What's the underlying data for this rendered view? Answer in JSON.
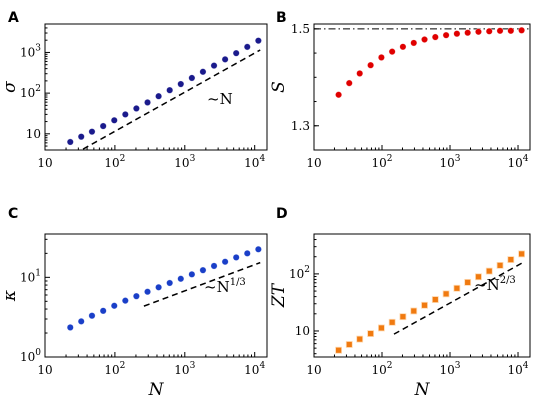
{
  "chart_data": [
    {
      "panel": "A",
      "type": "scatter",
      "xscale": "log",
      "yscale": "log",
      "xlim": [
        10,
        15000
      ],
      "ylim": [
        4,
        5000
      ],
      "xticks": [
        {
          "value": 10,
          "base": "10",
          "exp": ""
        },
        {
          "value": 100,
          "base": "10",
          "exp": "2"
        },
        {
          "value": 1000,
          "base": "10",
          "exp": "3"
        },
        {
          "value": 10000,
          "base": "10",
          "exp": "4"
        }
      ],
      "yticks": [
        {
          "value": 10,
          "base": "10",
          "exp": ""
        },
        {
          "value": 100,
          "base": "10",
          "exp": "2"
        },
        {
          "value": 1000,
          "base": "10",
          "exp": "3"
        }
      ],
      "xlabel": "",
      "ylabel": "σ",
      "marker_color": "#1a1a8c",
      "marker": "circle",
      "series": [
        {
          "x": [
            23,
            33,
            47,
            68,
            98,
            141,
            203,
            293,
            422,
            608,
            876,
            1262,
            1818,
            2620,
            3775,
            5438,
            7835,
            11288
          ],
          "y": [
            6.3,
            8.5,
            11.3,
            15.5,
            21.5,
            30,
            42,
            59,
            84,
            118,
            167,
            236,
            335,
            475,
            675,
            960,
            1370,
            1950
          ]
        }
      ],
      "guide": {
        "x": [
          35,
          12000
        ],
        "y": [
          4.2,
          1150
        ],
        "label": "~N",
        "sup": ""
      }
    },
    {
      "panel": "B",
      "type": "scatter",
      "xscale": "log",
      "yscale": "linear",
      "xlim": [
        10,
        15000
      ],
      "ylim": [
        1.25,
        1.51
      ],
      "xticks": [
        {
          "value": 10,
          "base": "10",
          "exp": ""
        },
        {
          "value": 100,
          "base": "10",
          "exp": "2"
        },
        {
          "value": 1000,
          "base": "10",
          "exp": "3"
        },
        {
          "value": 10000,
          "base": "10",
          "exp": "4"
        }
      ],
      "yticks": [
        {
          "value": 1.3,
          "base": "1.3",
          "exp": ""
        },
        {
          "value": 1.5,
          "base": "1.5",
          "exp": ""
        }
      ],
      "xlabel": "",
      "ylabel": "S",
      "marker_color": "#e00000",
      "marker": "circle",
      "series": [
        {
          "x": [
            23,
            33,
            47,
            68,
            98,
            141,
            203,
            293,
            422,
            608,
            876,
            1262,
            1818,
            2620,
            3775,
            5438,
            7835,
            11288
          ],
          "y": [
            1.364,
            1.388,
            1.408,
            1.425,
            1.441,
            1.453,
            1.463,
            1.471,
            1.478,
            1.483,
            1.487,
            1.49,
            1.492,
            1.494,
            1.495,
            1.496,
            1.496,
            1.497
          ]
        }
      ],
      "hline": 1.5
    },
    {
      "panel": "C",
      "type": "scatter",
      "xscale": "log",
      "yscale": "log",
      "xlim": [
        10,
        15000
      ],
      "ylim": [
        1,
        35
      ],
      "xticks": [
        {
          "value": 10,
          "base": "10",
          "exp": ""
        },
        {
          "value": 100,
          "base": "10",
          "exp": "2"
        },
        {
          "value": 1000,
          "base": "10",
          "exp": "3"
        },
        {
          "value": 10000,
          "base": "10",
          "exp": "4"
        }
      ],
      "yticks": [
        {
          "value": 1,
          "base": "10",
          "exp": "0"
        },
        {
          "value": 10,
          "base": "10",
          "exp": "1"
        }
      ],
      "xlabel": "N",
      "ylabel": "κ",
      "marker_color": "#1a3fc8",
      "marker": "circle",
      "series": [
        {
          "x": [
            23,
            33,
            47,
            68,
            98,
            141,
            203,
            293,
            422,
            608,
            876,
            1262,
            1818,
            2620,
            3775,
            5438,
            7835,
            11288
          ],
          "y": [
            2.35,
            2.8,
            3.3,
            3.8,
            4.4,
            5.1,
            5.8,
            6.6,
            7.5,
            8.5,
            9.6,
            10.9,
            12.3,
            13.9,
            15.7,
            17.8,
            20.0,
            22.5
          ]
        }
      ],
      "guide": {
        "x": [
          260,
          12000
        ],
        "y": [
          4.35,
          15.3
        ],
        "label": "~N",
        "sup": "1/3"
      }
    },
    {
      "panel": "D",
      "type": "scatter",
      "xscale": "log",
      "yscale": "log",
      "xlim": [
        10,
        15000
      ],
      "ylim": [
        3.5,
        500
      ],
      "xticks": [
        {
          "value": 10,
          "base": "10",
          "exp": ""
        },
        {
          "value": 100,
          "base": "10",
          "exp": "2"
        },
        {
          "value": 1000,
          "base": "10",
          "exp": "3"
        },
        {
          "value": 10000,
          "base": "10",
          "exp": "4"
        }
      ],
      "yticks": [
        {
          "value": 10,
          "base": "10",
          "exp": ""
        },
        {
          "value": 100,
          "base": "10",
          "exp": "2"
        }
      ],
      "xlabel": "N",
      "ylabel": "ZT",
      "marker_color": "#f07a10",
      "marker": "square",
      "series": [
        {
          "x": [
            23,
            33,
            47,
            68,
            98,
            141,
            203,
            293,
            422,
            608,
            876,
            1262,
            1818,
            2620,
            3775,
            5438,
            7835,
            11288
          ],
          "y": [
            4.6,
            5.8,
            7.2,
            9.0,
            11.3,
            14.2,
            17.8,
            22.4,
            28.2,
            35.5,
            44.7,
            56,
            71,
            89,
            112,
            141,
            178,
            224
          ]
        }
      ],
      "guide": {
        "x": [
          150,
          12000
        ],
        "y": [
          8.8,
          160
        ],
        "label": "~N",
        "sup": "2/3"
      }
    }
  ]
}
